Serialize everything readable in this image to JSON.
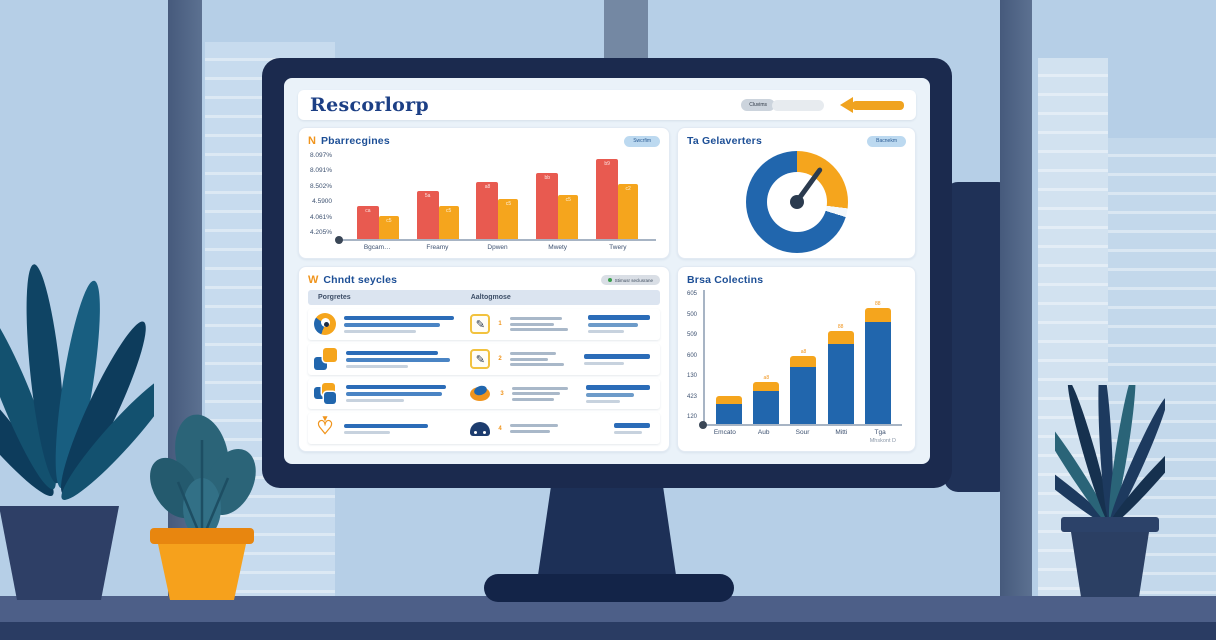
{
  "header": {
    "title": "Rescorlorp",
    "pill_label": "Cluvims"
  },
  "panels": {
    "grouped_bar": {
      "logo": "N",
      "title": "Pbarrecgines",
      "action_label": "Swcrfim"
    },
    "gauge": {
      "title": "Ta Gelaverters",
      "action_label": "Bacnekm"
    },
    "table": {
      "logo": "W",
      "title": "Chndt seycles",
      "status_label": "Stimusr seclusrane",
      "columns": [
        "Porgretes",
        "Aaltogmose"
      ],
      "rows": [
        {
          "left_icon": "pie-logo-icon",
          "right_icon": "pen-square-icon",
          "right_num": "1"
        },
        {
          "left_icon": "two-squares-icon",
          "right_icon": "pen-square-icon",
          "right_num": "2"
        },
        {
          "left_icon": "three-squares-icon",
          "right_icon": "fish-icon",
          "right_num": "3"
        },
        {
          "left_icon": "heart-pin-icon",
          "right_icon": "badge-icon",
          "right_num": "4"
        }
      ]
    },
    "stacked_bar": {
      "title": "Brsa Colectins",
      "caption": "Mhskont D"
    }
  },
  "icons": {
    "heart": "♡",
    "drop": "▾",
    "pen": "✎"
  },
  "colors": {
    "red": "#e85a50",
    "orange": "#f5a51d",
    "blue": "#2166ad",
    "navy": "#1b2a4e",
    "accent_arrow": "#f0a31f"
  },
  "chart_data": [
    {
      "type": "bar",
      "subtype": "grouped",
      "title": "Pbarrecgines",
      "categories": [
        "Bgcam…",
        "Freamy",
        "Dpwen",
        "Mwety",
        "Twery"
      ],
      "series": [
        {
          "name": "red",
          "color": "#e85a50",
          "values": [
            33,
            48,
            57,
            66,
            80
          ],
          "labels": [
            "ca",
            "5a",
            "a8",
            "bb",
            "b9"
          ]
        },
        {
          "name": "orange",
          "color": "#f5a51d",
          "values": [
            23,
            33,
            40,
            44,
            55
          ],
          "labels": [
            "c5",
            "c5",
            "c5",
            "c5",
            "c2"
          ]
        }
      ],
      "y_ticks": [
        "8.097%",
        "8.091%",
        "8.502%",
        "4.5900",
        "4.061%",
        "4.205%"
      ],
      "ylim": [
        0,
        90
      ],
      "grid": false,
      "legend": false
    },
    {
      "type": "pie",
      "subtype": "gauge",
      "title": "Ta Gelaverters",
      "slices": [
        {
          "name": "orange",
          "value": 27,
          "color": "#f5a51d"
        },
        {
          "name": "blue",
          "value": 70,
          "color": "#2166ad"
        }
      ],
      "gap_deg": 10,
      "needle_angle_deg": 36
    },
    {
      "type": "bar",
      "subtype": "stacked",
      "title": "Brsa Colectins",
      "categories": [
        "Emcato",
        "Aub",
        "Sour",
        "Mitti",
        "Tga"
      ],
      "series": [
        {
          "name": "blue",
          "color": "#2166ad",
          "values": [
            20,
            33,
            57,
            80,
            102
          ]
        },
        {
          "name": "orange",
          "color": "#f5a51d",
          "values": [
            8,
            9,
            11,
            13,
            14
          ]
        }
      ],
      "bar_labels": [
        "",
        "a8",
        "a8",
        "88",
        "88"
      ],
      "y_ticks": [
        "605",
        "500",
        "509",
        "600",
        "130",
        "423",
        "120"
      ],
      "caption": "Mhskont D",
      "grid": false,
      "legend": false
    }
  ]
}
